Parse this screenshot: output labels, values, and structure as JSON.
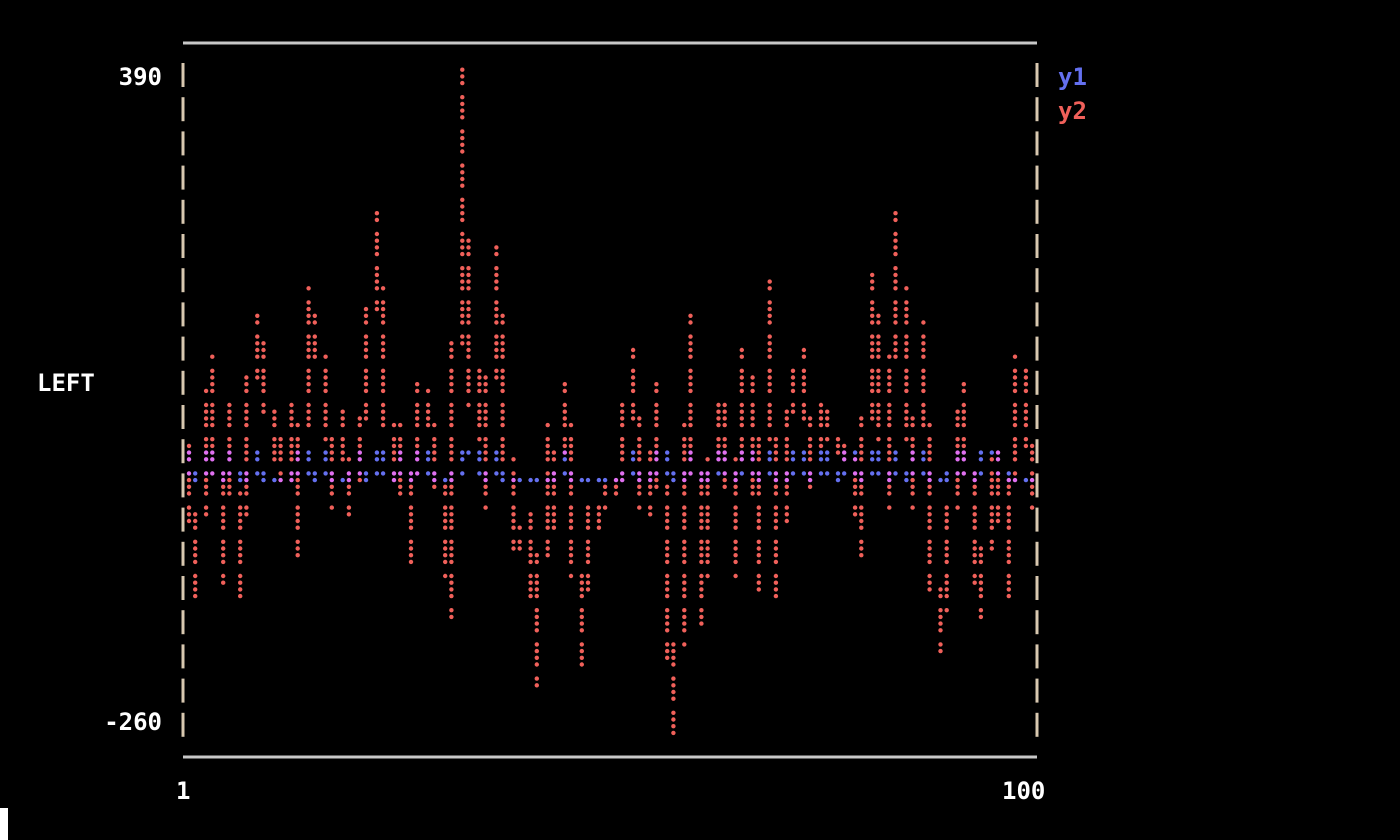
{
  "chart_data": {
    "type": "line",
    "title": "",
    "xlabel": "",
    "ylabel": "LEFT",
    "xlim": [
      1,
      100
    ],
    "ylim": [
      -260,
      390
    ],
    "x_tick_labels": [
      "1",
      "100"
    ],
    "y_tick_labels": [
      "390",
      "-260"
    ],
    "legend_placement": "right",
    "grid": false,
    "x_start": 1,
    "x_end": 100,
    "series": [
      {
        "name": "y1",
        "color": "#6470f0",
        "values": [
          10,
          -12,
          10,
          10,
          -12,
          10,
          -12,
          -12,
          8,
          -12,
          -12,
          -12,
          -12,
          10,
          10,
          -12,
          10,
          -12,
          -12,
          -12,
          10,
          -12,
          10,
          10,
          -12,
          10,
          -12,
          10,
          10,
          -12,
          -12,
          -12,
          10,
          10,
          10,
          -12,
          10,
          -12,
          -12,
          -12,
          -12,
          -12,
          -12,
          -12,
          10,
          -12,
          -12,
          -12,
          -12,
          -12,
          -12,
          -12,
          10,
          -12,
          -12,
          10,
          10,
          -12,
          -12,
          10,
          -12,
          -12,
          10,
          10,
          -12,
          10,
          10,
          -12,
          10,
          -12,
          -12,
          10,
          10,
          -12,
          10,
          10,
          -12,
          10,
          10,
          -12,
          10,
          10,
          -12,
          10,
          -12,
          10,
          10,
          -12,
          -12,
          -12,
          10,
          10,
          -12,
          10,
          10,
          10,
          -12,
          -12,
          -12,
          -12
        ]
      },
      {
        "name": "y2",
        "color": "#f0605a",
        "values": [
          20,
          -126,
          40,
          104,
          -110,
          60,
          -126,
          30,
          140,
          90,
          20,
          -10,
          60,
          -90,
          170,
          110,
          100,
          -40,
          50,
          -50,
          30,
          60,
          238,
          90,
          -10,
          40,
          -95,
          80,
          60,
          20,
          -60,
          -142,
          380,
          60,
          90,
          -40,
          213,
          70,
          -70,
          -80,
          -50,
          -212,
          40,
          -60,
          80,
          -10,
          -193,
          -40,
          -60,
          -20,
          -30,
          10,
          114,
          -20,
          -50,
          80,
          -120,
          -257,
          -80,
          145,
          -152,
          -50,
          60,
          60,
          -100,
          114,
          60,
          -118,
          174,
          -126,
          20,
          80,
          110,
          -20,
          60,
          40,
          10,
          20,
          -10,
          -90,
          184,
          100,
          -40,
          238,
          90,
          -40,
          135,
          -60,
          -180,
          -100,
          30,
          80,
          -90,
          -142,
          -10,
          10,
          -126,
          104,
          80,
          -40
        ]
      }
    ],
    "overlap_color": "#e070f0",
    "axis_color": "#c8c8c8"
  }
}
